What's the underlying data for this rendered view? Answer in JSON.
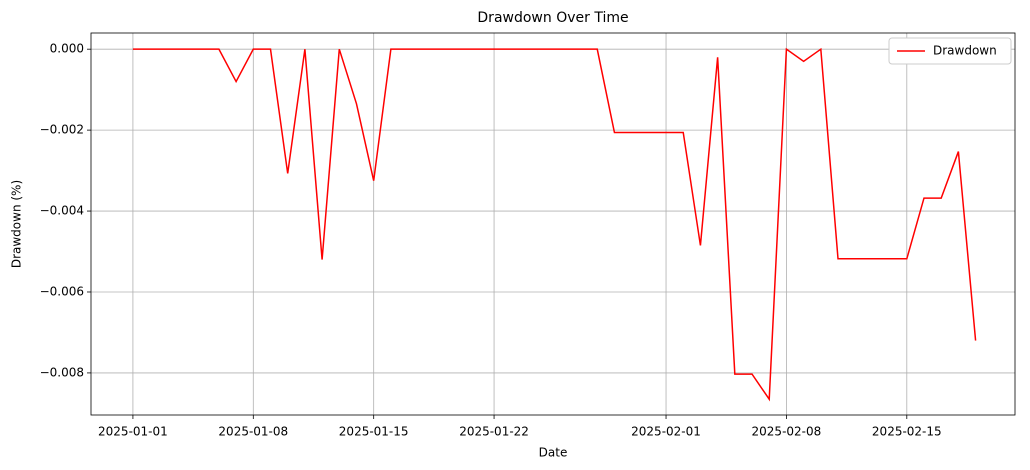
{
  "chart_data": {
    "type": "line",
    "title": "Drawdown Over Time",
    "xlabel": "Date",
    "ylabel": "Drawdown (%)",
    "x": [
      "2025-01-01",
      "2025-01-02",
      "2025-01-03",
      "2025-01-04",
      "2025-01-05",
      "2025-01-06",
      "2025-01-07",
      "2025-01-08",
      "2025-01-09",
      "2025-01-10",
      "2025-01-11",
      "2025-01-12",
      "2025-01-13",
      "2025-01-14",
      "2025-01-15",
      "2025-01-16",
      "2025-01-17",
      "2025-01-18",
      "2025-01-19",
      "2025-01-20",
      "2025-01-21",
      "2025-01-22",
      "2025-01-23",
      "2025-01-24",
      "2025-01-25",
      "2025-01-26",
      "2025-01-27",
      "2025-01-28",
      "2025-01-29",
      "2025-01-30",
      "2025-01-31",
      "2025-02-01",
      "2025-02-02",
      "2025-02-03",
      "2025-02-04",
      "2025-02-05",
      "2025-02-06",
      "2025-02-07",
      "2025-02-08",
      "2025-02-09",
      "2025-02-10",
      "2025-02-11",
      "2025-02-12",
      "2025-02-13",
      "2025-02-14",
      "2025-02-15",
      "2025-02-16",
      "2025-02-17",
      "2025-02-18",
      "2025-02-19"
    ],
    "series": [
      {
        "name": "Drawdown",
        "color": "#ff0000",
        "values": [
          0,
          0,
          0,
          0,
          0,
          0,
          -0.0008,
          0,
          0,
          -0.00307,
          0,
          -0.0052,
          0,
          -0.00135,
          -0.00325,
          0,
          0,
          0,
          0,
          0,
          0,
          0,
          0,
          0,
          0,
          0,
          0,
          0,
          -0.00206,
          -0.00206,
          -0.00206,
          -0.00206,
          -0.00206,
          -0.00485,
          -0.0002,
          -0.00803,
          -0.00803,
          -0.00865,
          0,
          -0.0003,
          0,
          -0.00518,
          -0.00518,
          -0.00518,
          -0.00518,
          -0.00518,
          -0.00368,
          -0.00368,
          -0.00253,
          -0.0072
        ]
      }
    ],
    "xlim": [
      "2024-12-29T13:30",
      "2025-02-21T07:00"
    ],
    "xticks": [
      "2025-01-01",
      "2025-01-08",
      "2025-01-15",
      "2025-01-22",
      "2025-02-01",
      "2025-02-08",
      "2025-02-15"
    ],
    "ylim": [
      -0.00904,
      0.0004
    ],
    "yticks": [
      {
        "value": 0,
        "label": "0.000"
      },
      {
        "value": -0.002,
        "label": "−0.002"
      },
      {
        "value": -0.004,
        "label": "−0.004"
      },
      {
        "value": -0.006,
        "label": "−0.006"
      },
      {
        "value": -0.008,
        "label": "−0.008"
      }
    ],
    "grid": true,
    "legend": "upper right"
  }
}
